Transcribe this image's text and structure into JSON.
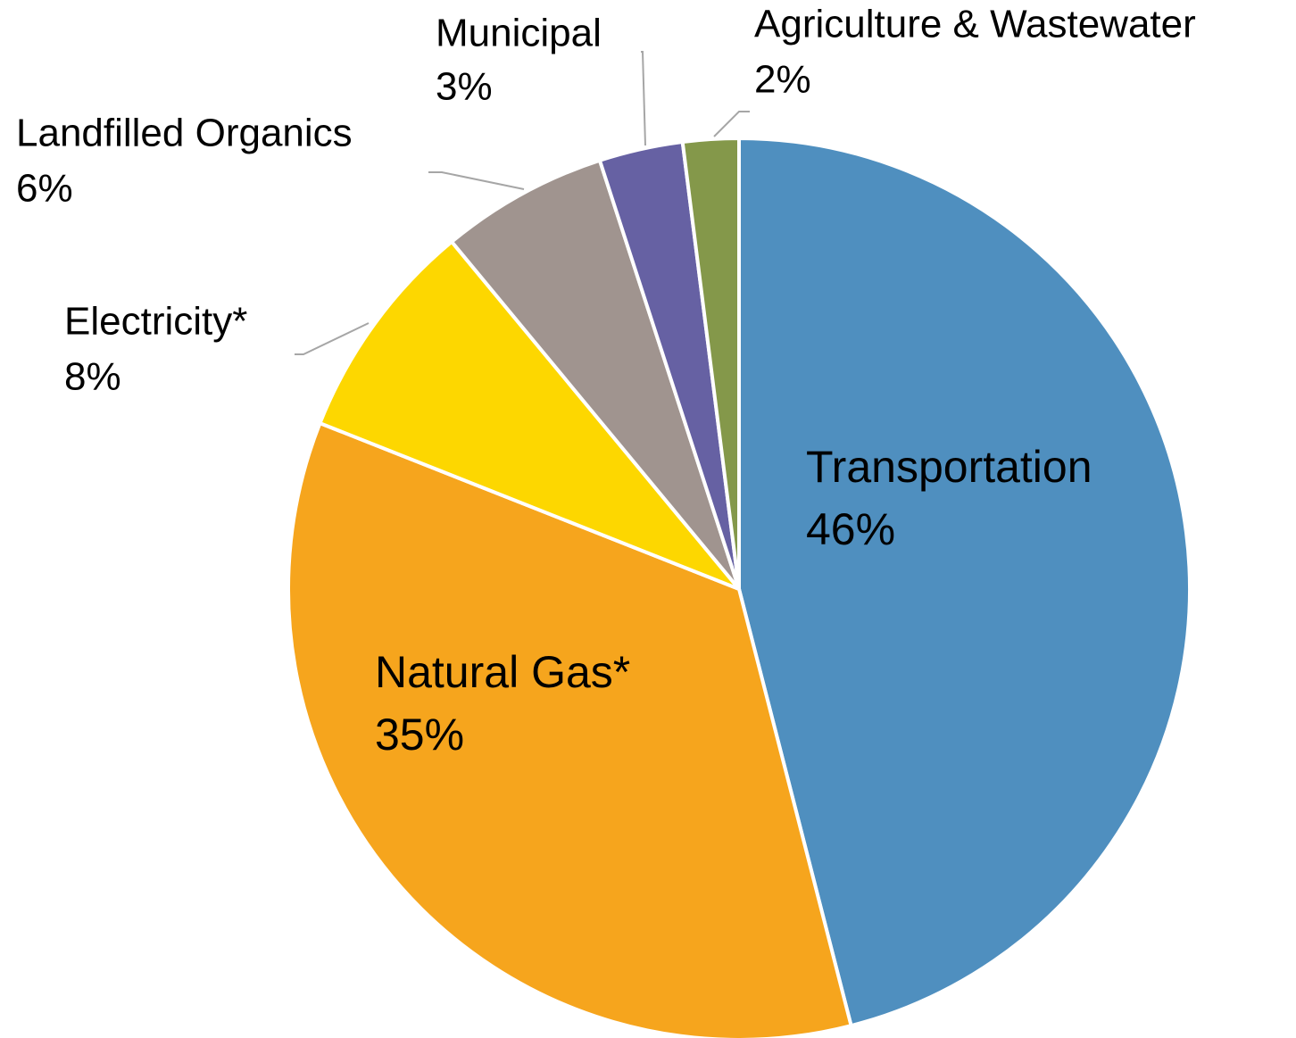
{
  "chart_data": {
    "type": "pie",
    "categories": [
      "Transportation",
      "Natural Gas*",
      "Electricity*",
      "Landfilled Organics",
      "Municipal",
      "Agriculture & Wastewater"
    ],
    "values": [
      46,
      35,
      8,
      6,
      3,
      2
    ],
    "value_labels": [
      "46%",
      "35%",
      "8%",
      "6%",
      "3%",
      "2%"
    ],
    "colors": [
      "#4f8fbf",
      "#f6a51d",
      "#fdd700",
      "#a0948f",
      "#6661a3",
      "#84984a"
    ]
  }
}
